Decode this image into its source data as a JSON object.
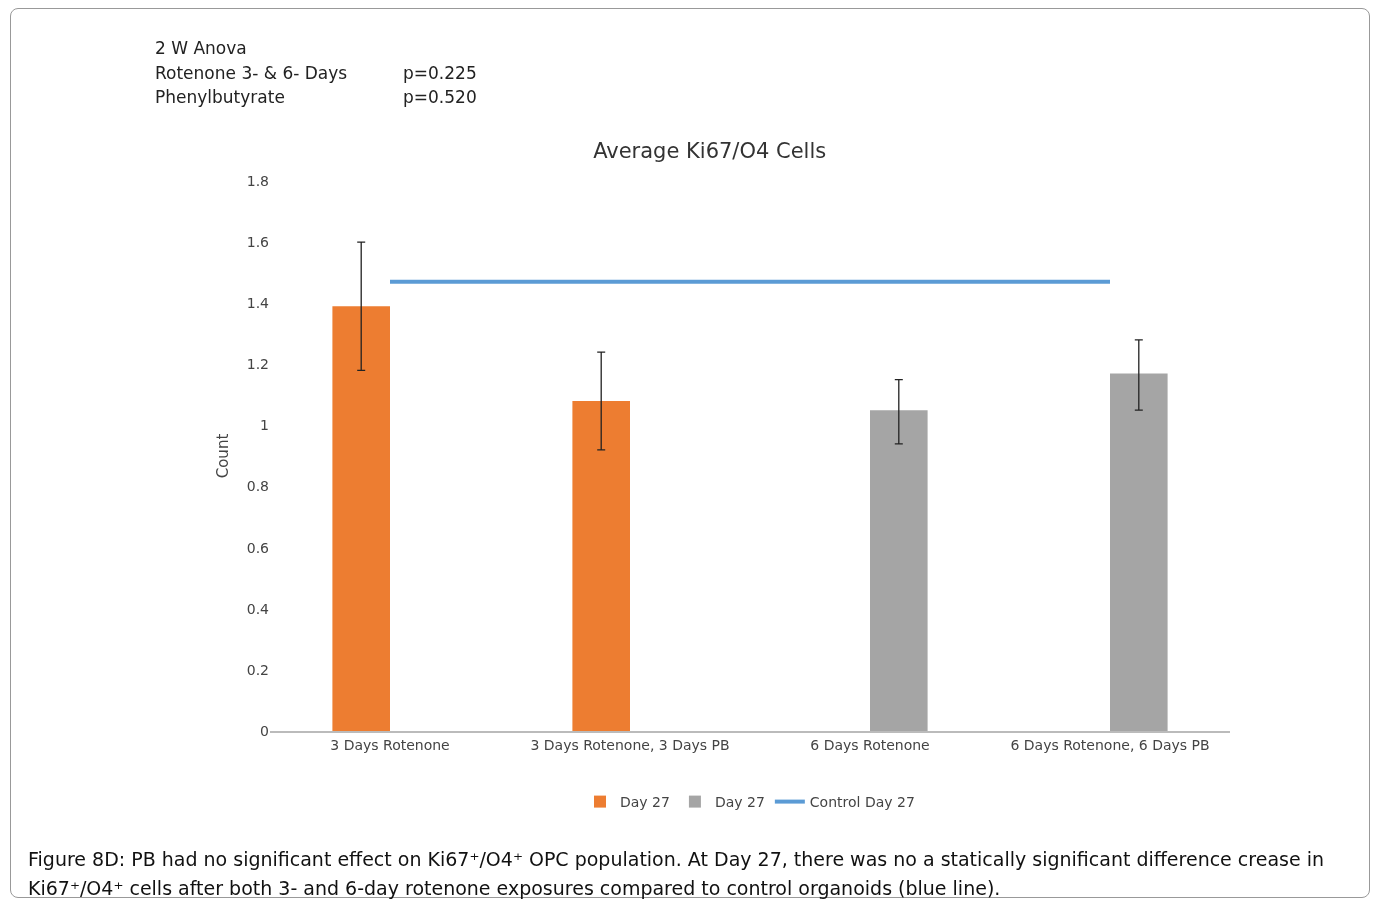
{
  "chart_data": {
    "type": "bar",
    "title": "Average Ki67/O4 Cells",
    "ylabel": "Count",
    "categories": [
      "3 Days Rotenone",
      "3 Days Rotenone, 3 Days PB",
      "6 Days Rotenone",
      "6 Days Rotenone, 6 Days PB"
    ],
    "series": [
      {
        "name": "Day 27",
        "color": "#ed7d31",
        "values": [
          1.39,
          1.08,
          null,
          null
        ],
        "errors": [
          [
            1.18,
            1.6
          ],
          [
            0.92,
            1.24
          ],
          null,
          null
        ]
      },
      {
        "name": "Day 27",
        "color": "#a5a5a5",
        "values": [
          null,
          null,
          1.05,
          1.17
        ],
        "errors": [
          null,
          null,
          [
            0.94,
            1.15
          ],
          [
            1.05,
            1.28
          ]
        ]
      },
      {
        "name": "Control Day 27",
        "type": "line",
        "color": "#5b9bd5",
        "values": [
          1.47,
          1.47,
          1.47,
          1.47
        ]
      }
    ],
    "ylim": [
      0,
      1.8
    ],
    "yticks": [
      0,
      0.2,
      0.4,
      0.6,
      0.8,
      1,
      1.2,
      1.4,
      1.6,
      1.8
    ],
    "grid": false,
    "legend": "bottom",
    "annotations": [
      "2 W Anova",
      "Rotenone 3- & 6- Days",
      "p=0.225",
      "Phenylbutyrate",
      "p=0.520",
      "Figure 8D: PB had no significant effect on Ki67⁺/O4⁺ OPC population. At Day 27, there was no a statically significant difference crease in Ki67⁺/O4⁺ cells after both 3- and 6-day rotenone exposures compared to control organoids (blue line)."
    ]
  }
}
